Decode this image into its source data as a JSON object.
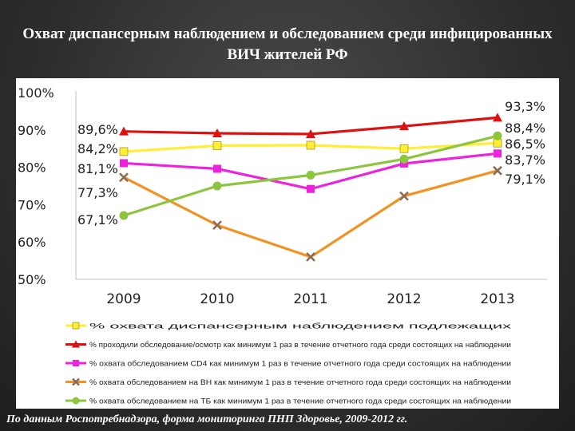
{
  "title": "Охват диспансерным наблюдением и обследованием среди инфицированных ВИЧ жителей РФ",
  "footer": "По данным Роспотребнадзора, форма мониторинга ПНП Здоровье, 2009-2012 гг.",
  "chart_data": {
    "type": "line",
    "categories": [
      "2009",
      "2010",
      "2011",
      "2012",
      "2013"
    ],
    "ylim": [
      50,
      100
    ],
    "yticks": [
      "50%",
      "60%",
      "70%",
      "80%",
      "90%",
      "100%"
    ],
    "grid": false,
    "legend_position": "bottom",
    "series": [
      {
        "name": "% охвата диспансерным наблюдением подлежащих",
        "color": "#ffee33",
        "marker": "square",
        "values": [
          84.2,
          85.8,
          85.9,
          85.0,
          86.5
        ]
      },
      {
        "name": "% проходили обследование/осмотр как минимум 1 раз в течение отчетного года среди состоящих на наблюдении",
        "color": "#dd1111",
        "marker": "triangle",
        "values": [
          89.6,
          89.1,
          88.9,
          91.0,
          93.3
        ]
      },
      {
        "name": "% охвата обследованием CD4 как минимум 1 раз в течение отчетного года среди состоящих на наблюдении",
        "color": "#ee22dd",
        "marker": "square",
        "values": [
          81.1,
          79.6,
          74.2,
          81.0,
          83.7
        ]
      },
      {
        "name": "% охвата обследованием на ВН как минимум 1 раз в течение отчетного года среди состоящих на наблюдении",
        "color": "#f39222",
        "marker": "x",
        "values": [
          77.3,
          64.5,
          56.0,
          72.3,
          79.1
        ]
      },
      {
        "name": "% охвата обследованием на ТБ как минимум 1 раз в течение отчетного года среди состоящих на наблюдении",
        "color": "#8cc63f",
        "marker": "circle",
        "values": [
          67.1,
          75.0,
          77.9,
          82.2,
          88.4
        ]
      }
    ],
    "data_labels": [
      {
        "text": "89,6%",
        "series": 1,
        "point": 0
      },
      {
        "text": "84,2%",
        "series": 0,
        "point": 0
      },
      {
        "text": "81,1%",
        "series": 2,
        "point": 0
      },
      {
        "text": "77,3%",
        "series": 3,
        "point": 0
      },
      {
        "text": "67,1%",
        "series": 4,
        "point": 0
      },
      {
        "text": "93,3%",
        "series": 1,
        "point": 4
      },
      {
        "text": "88,4%",
        "series": 4,
        "point": 4
      },
      {
        "text": "86,5%",
        "series": 0,
        "point": 4
      },
      {
        "text": "83,7%",
        "series": 2,
        "point": 4
      },
      {
        "text": "79,1%",
        "series": 3,
        "point": 4
      }
    ]
  }
}
